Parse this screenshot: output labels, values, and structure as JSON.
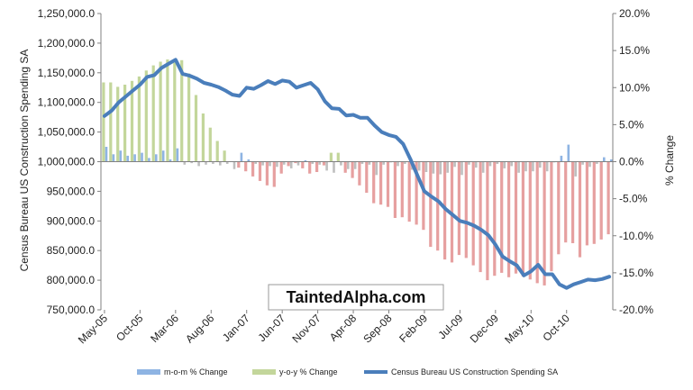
{
  "chart_data": {
    "type": "bar+line",
    "title": "",
    "watermark": "TaintedAlpha.com",
    "y_left_label": "Census Bureau US Construction Spending SA",
    "y_right_label": "% Change",
    "y_left_ticks": [
      "1,250,000.0",
      "1,200,000.0",
      "1,150,000.0",
      "1,100,000.0",
      "1,050,000.0",
      "1,000,000.0",
      "950,000.0",
      "900,000.0",
      "850,000.0",
      "800,000.0",
      "750,000.0"
    ],
    "y_right_ticks": [
      "20.0%",
      "15.0%",
      "10.0%",
      "5.0%",
      "0.0%",
      "-5.0%",
      "-10.0%",
      "-15.0%",
      "-20.0%"
    ],
    "y_left_range": [
      750000,
      1250000
    ],
    "y_right_range": [
      -20,
      20
    ],
    "x_tick_labels": [
      "May-05",
      "Oct-05",
      "Mar-06",
      "Aug-06",
      "Jan-07",
      "Jun-07",
      "Nov-07",
      "Apr-08",
      "Sep-08",
      "Feb-09",
      "Jul-09",
      "Dec-09",
      "May-10",
      "Oct-10"
    ],
    "x_tick_step_months": 5,
    "colors": {
      "mom": "#8eb4e3",
      "yoy_pos": "#c3d69b",
      "yoy_neg": "#e6a0a0",
      "mom_neg": "#bfbfbf",
      "line": "#4a7ebb",
      "axis": "#808080"
    },
    "series": [
      {
        "name": "m-o-m % Change",
        "axis": "right",
        "values": [
          2.0,
          1.0,
          1.5,
          0.8,
          1.0,
          1.2,
          0.5,
          1.0,
          1.5,
          0.3,
          1.8,
          -0.4,
          -0.2,
          -0.6,
          -0.4,
          -0.3,
          -0.5,
          -0.3,
          -1.0,
          1.2,
          0.3,
          -0.3,
          -0.5,
          -0.6,
          -0.7,
          -0.4,
          -0.9,
          -0.5,
          0.2,
          -0.3,
          -0.4,
          -1.2,
          -1.5,
          -0.5,
          -1.0,
          -1.0,
          -0.3,
          -0.4,
          -1.8,
          -0.4,
          -0.1,
          -0.6,
          -0.3,
          -1.1,
          -1.2,
          -1.4,
          -1.6,
          -1.7,
          -1.5,
          -0.7,
          -1.8,
          -0.4,
          -0.8,
          -1.5,
          -0.6,
          -0.3,
          -0.9,
          -0.6,
          -1.5,
          -1.3,
          -1.3,
          -0.8,
          -1.3,
          -0.1,
          0.8,
          2.3,
          -2.0,
          -0.4,
          -0.7,
          -0.3,
          0.6,
          0.3
        ]
      },
      {
        "name": "y-o-y % Change",
        "axis": "right",
        "values": [
          10.7,
          10.7,
          10.1,
          10.4,
          10.9,
          11.5,
          12.3,
          13.0,
          13.5,
          13.8,
          13.4,
          13.7,
          11.9,
          9.0,
          6.5,
          4.6,
          2.8,
          1.5,
          0.0,
          -0.8,
          -1.3,
          -2.0,
          -2.6,
          -3.2,
          -3.4,
          -1.6,
          -0.6,
          -0.2,
          -0.9,
          -1.6,
          -1.4,
          -0.5,
          1.2,
          1.2,
          -1.5,
          -2.2,
          -3.2,
          -4.2,
          -5.6,
          -5.8,
          -6.1,
          -7.6,
          -7.5,
          -8.1,
          -8.5,
          -9.2,
          -11.5,
          -12.0,
          -13.2,
          -13.6,
          -12.6,
          -13.0,
          -14.0,
          -14.9,
          -16.0,
          -15.4,
          -15.0,
          -15.6,
          -15.1,
          -15.5,
          -15.9,
          -16.4,
          -16.7,
          -14.8,
          -12.5,
          -10.9,
          -11.0,
          -12.9,
          -11.3,
          -11.1,
          -10.5,
          -9.8
        ]
      },
      {
        "name": "Census Bureau US Construction Spending SA",
        "axis": "left",
        "values": [
          1077000,
          1086000,
          1100000,
          1110000,
          1120000,
          1130000,
          1143000,
          1146000,
          1158000,
          1165000,
          1172000,
          1148000,
          1145000,
          1140000,
          1133000,
          1130000,
          1126000,
          1120000,
          1113000,
          1111000,
          1125000,
          1123000,
          1129000,
          1136000,
          1131000,
          1137000,
          1135000,
          1125000,
          1129000,
          1133000,
          1122000,
          1102000,
          1090000,
          1089000,
          1078000,
          1079000,
          1074000,
          1074000,
          1061000,
          1050000,
          1045000,
          1042000,
          1030000,
          1005000,
          977000,
          950000,
          941000,
          933000,
          920000,
          910000,
          900000,
          897000,
          892000,
          885000,
          876000,
          860000,
          840000,
          832000,
          825000,
          808000,
          815000,
          826000,
          810000,
          810000,
          793000,
          787000,
          793000,
          797000,
          801000,
          800000,
          802000,
          806000
        ]
      }
    ]
  }
}
